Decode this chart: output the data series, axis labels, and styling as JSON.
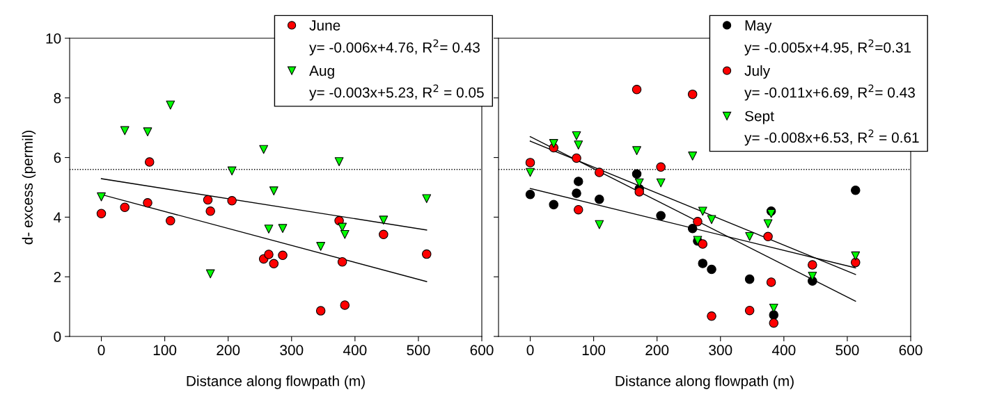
{
  "chart_data": [
    {
      "type": "scatter",
      "xlabel": "Distance along flowpath (m)",
      "ylabel": "d- excess (permil)",
      "xlim": [
        -50,
        600
      ],
      "xticks": [
        0,
        100,
        200,
        300,
        400,
        500,
        600
      ],
      "ylim": [
        0,
        10
      ],
      "yticks": [
        0,
        2,
        4,
        6,
        8,
        10
      ],
      "grid": false,
      "legend": "top right",
      "ref_lines": [
        {
          "axis": "y",
          "value": 5.6,
          "color": "#000000",
          "line_style": "dotted"
        }
      ],
      "annotations": [
        "y= -0.006x+4.76, R$^{2}$= 0.43",
        "y= -0.003x+5.23, R$^{2}$ = 0.05"
      ],
      "series": [
        {
          "name": "June",
          "color": "#ff0000",
          "marker": "circle",
          "x": [
            0,
            37,
            73,
            76,
            109,
            168,
            172,
            206,
            256,
            264,
            272,
            286,
            346,
            375,
            380,
            384,
            445,
            513
          ],
          "values": [
            4.12,
            4.33,
            4.48,
            5.85,
            3.88,
            4.58,
            4.2,
            4.55,
            2.6,
            2.75,
            2.44,
            2.72,
            0.86,
            3.88,
            2.5,
            1.05,
            3.42,
            2.76
          ]
        },
        {
          "name": "Aug",
          "color": "#00ff00",
          "marker": "triangle",
          "x": [
            0,
            37,
            73,
            109,
            172,
            206,
            256,
            264,
            272,
            286,
            346,
            375,
            380,
            384,
            445,
            513
          ],
          "values": [
            4.68,
            6.9,
            6.86,
            7.76,
            2.1,
            5.55,
            6.27,
            3.6,
            4.88,
            3.62,
            3.02,
            5.86,
            3.66,
            3.42,
            3.9,
            4.62
          ]
        },
        {
          "type": "line",
          "color": "#000000",
          "x": [
            0,
            513
          ],
          "values": [
            4.76,
            1.84
          ]
        },
        {
          "type": "line",
          "color": "#000000",
          "x": [
            0,
            513
          ],
          "values": [
            5.29,
            3.57
          ]
        }
      ]
    },
    {
      "type": "scatter",
      "xlabel": "Distance along flowpath (m)",
      "xlim": [
        -50,
        600
      ],
      "xticks": [
        0,
        100,
        200,
        300,
        400,
        500,
        600
      ],
      "ylim": [
        0,
        10
      ],
      "yticks": [
        {
          "value": 0,
          "label": null
        },
        {
          "value": 2,
          "label": null
        },
        {
          "value": 4,
          "label": null
        },
        {
          "value": 6,
          "label": null
        },
        {
          "value": 8,
          "label": null
        },
        {
          "value": 10,
          "label": null
        }
      ],
      "tick_labels": "x",
      "grid": false,
      "legend": "top right",
      "ref_lines": [
        {
          "axis": "y",
          "value": 5.6,
          "color": "#000000",
          "line_style": "dotted"
        }
      ],
      "annotations": [
        "y= -0.005x+4.95, R$^{2}$=0.31",
        "y= -0.011x+6.69, R$^{2}$= 0.43",
        "y= -0.008x+6.53, R$^{2}$ = 0.61"
      ],
      "series": [
        {
          "name": "May",
          "color": "#000000",
          "marker": "circle",
          "x": [
            0,
            37,
            73,
            76,
            109,
            168,
            172,
            206,
            256,
            264,
            272,
            286,
            346,
            380,
            384,
            445,
            513
          ],
          "values": [
            4.76,
            4.42,
            4.8,
            5.2,
            4.6,
            5.45,
            4.95,
            4.05,
            3.62,
            3.2,
            2.45,
            2.25,
            1.92,
            4.2,
            0.72,
            1.86,
            4.9
          ]
        },
        {
          "name": "July",
          "color": "#ff0000",
          "marker": "circle",
          "x": [
            0,
            37,
            73,
            76,
            109,
            168,
            172,
            206,
            256,
            264,
            272,
            286,
            346,
            375,
            380,
            384,
            445,
            513
          ],
          "values": [
            5.83,
            6.33,
            5.98,
            4.25,
            5.5,
            8.28,
            4.85,
            5.68,
            8.12,
            3.85,
            3.1,
            0.68,
            0.87,
            3.35,
            1.82,
            0.45,
            2.4,
            2.48
          ]
        },
        {
          "name": "Sept",
          "color": "#00ff00",
          "marker": "triangle",
          "x": [
            0,
            37,
            73,
            76,
            109,
            168,
            172,
            206,
            256,
            264,
            272,
            286,
            346,
            375,
            380,
            384,
            445,
            513
          ],
          "values": [
            5.5,
            6.47,
            6.73,
            6.42,
            3.75,
            6.23,
            5.15,
            5.15,
            6.05,
            3.22,
            4.2,
            3.92,
            3.35,
            3.78,
            4.12,
            0.95,
            2.02,
            2.7
          ]
        },
        {
          "type": "line",
          "color": "#000000",
          "x": [
            0,
            513
          ],
          "values": [
            4.96,
            2.3
          ]
        },
        {
          "type": "line",
          "color": "#000000",
          "x": [
            0,
            513
          ],
          "values": [
            6.7,
            1.18
          ]
        },
        {
          "type": "line",
          "color": "#000000",
          "x": [
            0,
            513
          ],
          "values": [
            6.55,
            2.08
          ]
        }
      ]
    }
  ]
}
